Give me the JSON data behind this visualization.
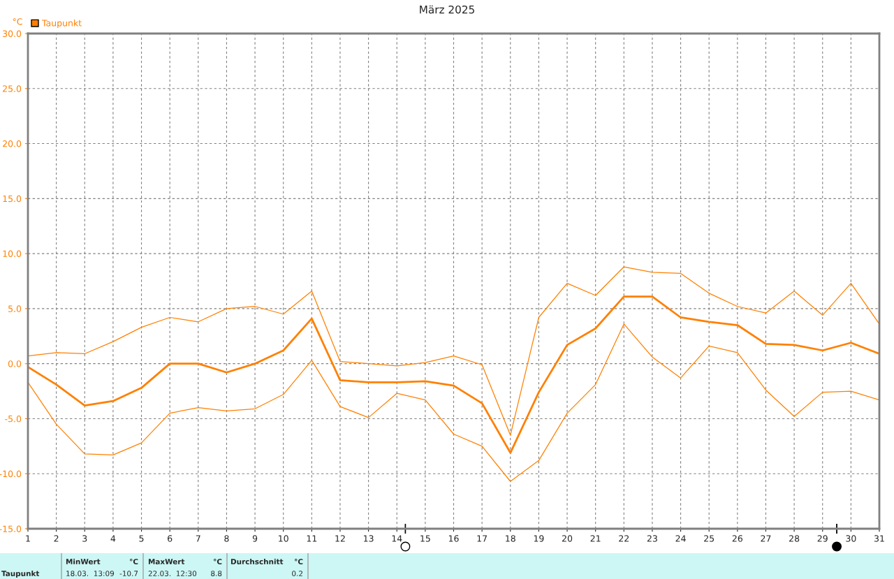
{
  "chart_data": {
    "type": "line",
    "title": "März 2025",
    "ylabel": "°C",
    "x": [
      1,
      2,
      3,
      4,
      5,
      6,
      7,
      8,
      9,
      10,
      11,
      12,
      13,
      14,
      15,
      16,
      17,
      18,
      19,
      20,
      21,
      22,
      23,
      24,
      25,
      26,
      27,
      28,
      29,
      30,
      31
    ],
    "series": [
      {
        "color": "#ff8000",
        "values": [
          0.7,
          1.0,
          0.9,
          2.0,
          3.3,
          4.2,
          3.8,
          5.0,
          5.2,
          4.5,
          6.6,
          0.2,
          0.0,
          -0.2,
          0.1,
          0.7,
          -0.1,
          -6.5,
          4.2,
          7.3,
          6.2,
          8.8,
          8.3,
          8.2,
          6.4,
          5.2,
          4.6,
          6.6,
          4.4,
          7.3,
          3.6
        ]
      },
      {
        "name": "Taupunkt",
        "color": "#ff8000",
        "values": [
          -0.3,
          -1.9,
          -3.8,
          -3.4,
          -2.2,
          0.0,
          0.0,
          -0.8,
          0.0,
          1.2,
          4.1,
          -1.5,
          -1.7,
          -1.7,
          -1.6,
          -2.0,
          -3.6,
          -8.1,
          -2.6,
          1.7,
          3.2,
          6.1,
          6.1,
          4.2,
          3.8,
          3.5,
          1.8,
          1.7,
          1.2,
          1.9,
          0.9
        ]
      },
      {
        "color": "#ff8000",
        "values": [
          -1.7,
          -5.5,
          -8.2,
          -8.3,
          -7.2,
          -4.5,
          -4.0,
          -4.3,
          -4.1,
          -2.8,
          0.3,
          -3.9,
          -4.9,
          -2.7,
          -3.3,
          -6.4,
          -7.5,
          -10.7,
          -8.8,
          -4.5,
          -1.9,
          3.6,
          0.6,
          -1.3,
          1.6,
          1.0,
          -2.4,
          -4.8,
          -2.6,
          -2.5,
          -3.3
        ]
      }
    ],
    "xlim": [
      1,
      31
    ],
    "xticks": [
      1,
      2,
      3,
      4,
      5,
      6,
      7,
      8,
      9,
      10,
      11,
      12,
      13,
      14,
      15,
      16,
      17,
      18,
      19,
      20,
      21,
      22,
      23,
      24,
      25,
      26,
      27,
      28,
      29,
      30,
      31
    ],
    "ylim": [
      -15,
      30
    ],
    "yticks": [
      {
        "value": 30,
        "label": "30.0"
      },
      {
        "value": 25,
        "label": "25.0"
      },
      {
        "value": 20,
        "label": "20.0"
      },
      {
        "value": 15,
        "label": "15.0"
      },
      {
        "value": 10,
        "label": "10.0"
      },
      {
        "value": 5,
        "label": "5.0"
      },
      {
        "value": 0,
        "label": "0.0"
      },
      {
        "value": -5,
        "label": "-5.0"
      },
      {
        "value": -10,
        "label": "-10.0"
      },
      {
        "value": -15,
        "label": "-15.0"
      }
    ],
    "grid": true,
    "legend": "top left",
    "marker": "none",
    "line_style": "solid",
    "annotations": [
      "Taupunkt",
      "MinWert",
      "°C",
      "18.03.  13:09",
      "-10.7",
      "MaxWert",
      "°C",
      "22.03.  12:30",
      "8.8",
      "Durchschnitt",
      "°C",
      "0.2"
    ]
  }
}
